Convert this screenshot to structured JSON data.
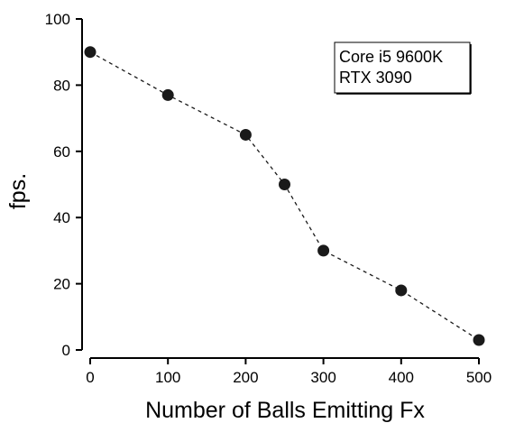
{
  "chart_data": {
    "type": "scatter",
    "xlabel": "Number of Balls Emitting Fx",
    "ylabel": "fps.",
    "xlim": [
      0,
      500
    ],
    "ylim": [
      0,
      100
    ],
    "xticks": [
      0,
      100,
      200,
      300,
      400,
      500
    ],
    "yticks": [
      0,
      20,
      40,
      60,
      80,
      100
    ],
    "grid": false,
    "line_style": "dashed",
    "series": [
      {
        "x": [
          0,
          100,
          200,
          250,
          300,
          400,
          500
        ],
        "y": [
          90,
          77,
          65,
          50,
          30,
          18,
          3
        ]
      }
    ],
    "annotation": {
      "lines": [
        "Core i5 9600K",
        "RTX 3090"
      ],
      "placement": "top-right"
    },
    "colors": {
      "marker": "#1a1a1a",
      "line": "#1a1a1a",
      "axis": "#000000"
    }
  }
}
